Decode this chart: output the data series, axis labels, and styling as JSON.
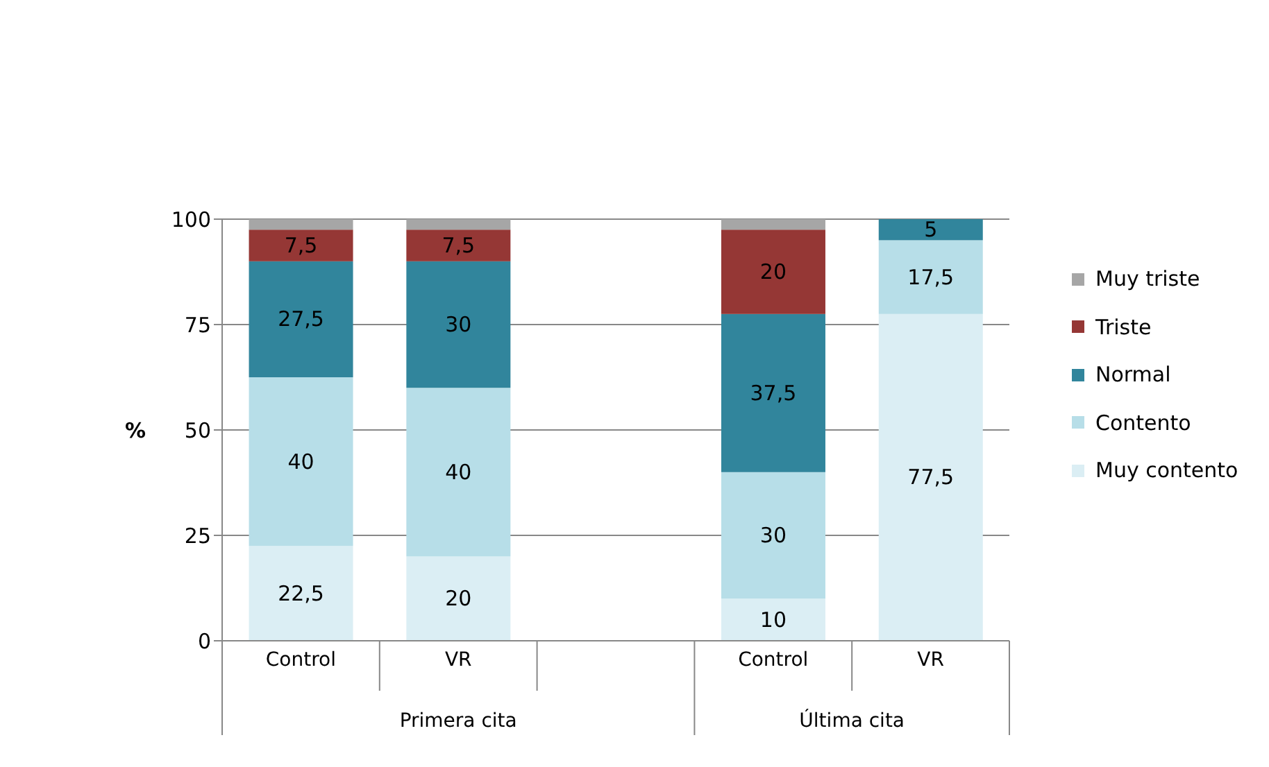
{
  "chart_data": {
    "type": "bar",
    "stacked": true,
    "ylabel": "%",
    "categories": [
      "Control",
      "VR",
      null,
      "Control",
      "VR"
    ],
    "annotations": [
      "Primera cita",
      "Última cita"
    ],
    "series": [
      {
        "name": "Muy contento",
        "color": "#dbeef4",
        "values": [
          22.5,
          20,
          null,
          10,
          77.5
        ],
        "value_labels": [
          "22,5",
          "20",
          null,
          "10",
          "77,5"
        ]
      },
      {
        "name": "Contento",
        "color": "#b7dee8",
        "values": [
          40,
          40,
          null,
          30,
          17.5
        ],
        "value_labels": [
          "40",
          "40",
          null,
          "30",
          "17,5"
        ]
      },
      {
        "name": "Normal",
        "color": "#31859c",
        "values": [
          27.5,
          30,
          null,
          37.5,
          5
        ],
        "value_labels": [
          "27,5",
          "30",
          null,
          "37,5",
          "5"
        ]
      },
      {
        "name": "Triste",
        "color": "#953735",
        "values": [
          7.5,
          7.5,
          null,
          20,
          0
        ],
        "value_labels": [
          "7,5",
          "7,5",
          null,
          "20",
          null
        ]
      },
      {
        "name": "Muy triste",
        "color": "#a6a6a6",
        "values": [
          2.5,
          2.5,
          null,
          2.5,
          0
        ],
        "value_labels": [
          null,
          null,
          null,
          null,
          null
        ]
      }
    ],
    "ylim": [
      0,
      100
    ],
    "yticks": [
      0,
      25,
      50,
      75,
      100
    ],
    "grid": "y",
    "legend": "right"
  }
}
